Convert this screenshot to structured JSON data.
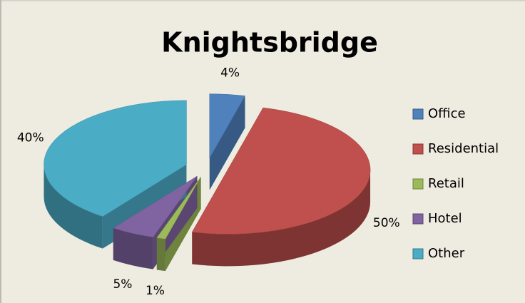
{
  "chart_data": {
    "type": "pie",
    "title": "Knightsbridge",
    "categories": [
      "Office",
      "Residential",
      "Retail",
      "Hotel",
      "Other"
    ],
    "values": [
      4,
      50,
      1,
      5,
      40
    ],
    "value_labels": [
      "4%",
      "50%",
      "1%",
      "5%",
      "40%"
    ],
    "colors": [
      "#4f81bd",
      "#c0504d",
      "#9bbb59",
      "#8064a2",
      "#4bacc6"
    ],
    "legend": "right"
  }
}
